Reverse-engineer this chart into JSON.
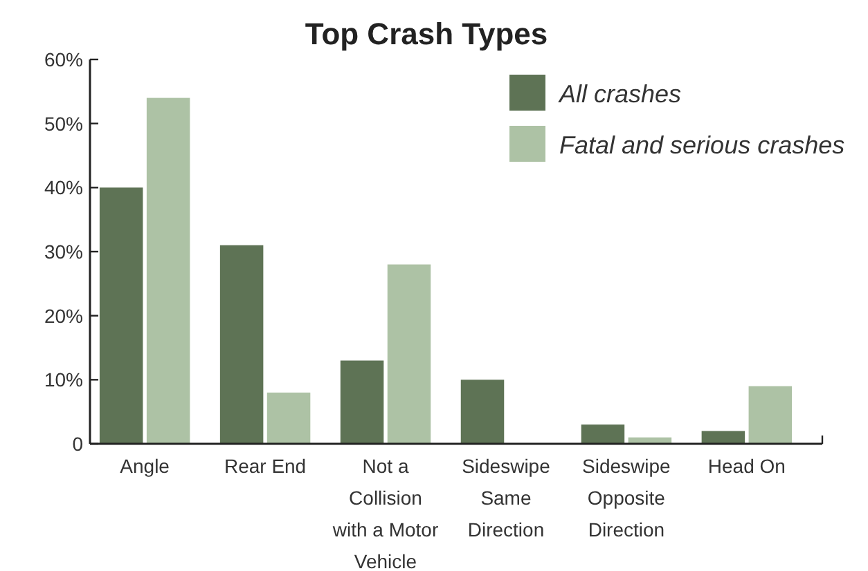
{
  "chart_data": {
    "type": "bar",
    "title": "Top Crash Types",
    "categories": [
      "Angle",
      "Rear End",
      "Not a Collision with a Motor Vehicle",
      "Sideswipe Same Direction",
      "Sideswipe Opposite Direction",
      "Head On"
    ],
    "series": [
      {
        "name": "All crashes",
        "color": "#5e7355",
        "values": [
          40,
          31,
          13,
          10,
          3,
          2
        ]
      },
      {
        "name": "Fatal and serious crashes",
        "color": "#adc2a5",
        "values": [
          54,
          8,
          28,
          0,
          1,
          9
        ]
      }
    ],
    "ylim": [
      0,
      60
    ],
    "yticks": [
      {
        "value": 0,
        "label": "0"
      },
      {
        "value": 10,
        "label": "10%"
      },
      {
        "value": 20,
        "label": "20%"
      },
      {
        "value": 30,
        "label": "30%"
      },
      {
        "value": 40,
        "label": "40%"
      },
      {
        "value": 50,
        "label": "50%"
      },
      {
        "value": 60,
        "label": "60%"
      }
    ],
    "legend": "top right",
    "grid": false
  }
}
